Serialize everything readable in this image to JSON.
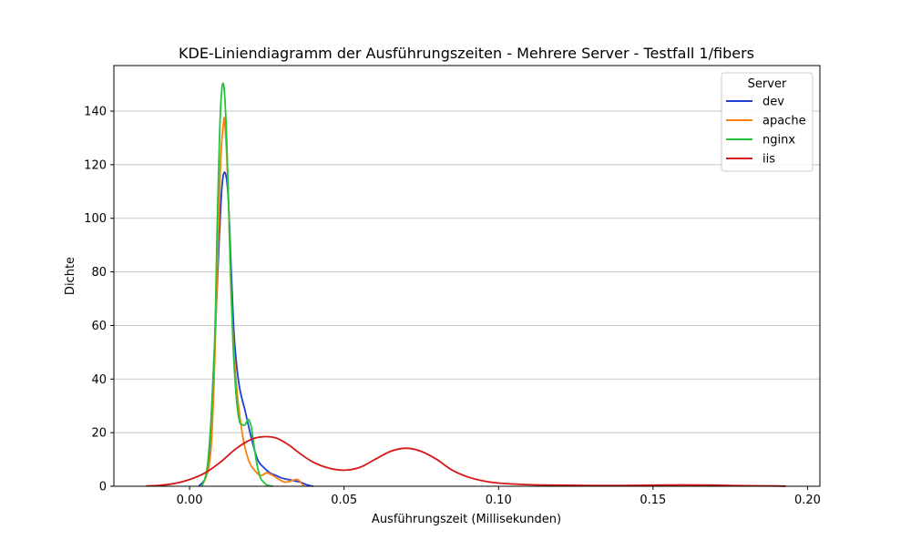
{
  "chart_data": {
    "type": "line",
    "title": "KDE-Liniendiagramm der Ausführungszeiten - Mehrere Server - Testfall 1/fibers",
    "xlabel": "Ausführungszeit (Millisekunden)",
    "ylabel": "Dichte",
    "xlim": [
      -0.0245,
      0.204
    ],
    "ylim": [
      0,
      157
    ],
    "x_ticks": [
      0.0,
      0.05,
      0.1,
      0.15,
      0.2
    ],
    "x_tick_labels": [
      "0.00",
      "0.05",
      "0.10",
      "0.15",
      "0.20"
    ],
    "y_ticks": [
      0,
      20,
      40,
      60,
      80,
      100,
      120,
      140
    ],
    "y_tick_labels": [
      "0",
      "20",
      "40",
      "60",
      "80",
      "100",
      "120",
      "140"
    ],
    "grid": "horizontal",
    "legend": {
      "title": "Server",
      "placement": "top-right"
    },
    "series": [
      {
        "name": "dev",
        "color": "#1f3fd6",
        "x": [
          0.003,
          0.006,
          0.008,
          0.0095,
          0.0105,
          0.0115,
          0.0125,
          0.0135,
          0.0145,
          0.016,
          0.018,
          0.02,
          0.022,
          0.024,
          0.026,
          0.028,
          0.03,
          0.032,
          0.034,
          0.036,
          0.038,
          0.04
        ],
        "y": [
          0,
          8,
          50,
          90,
          112,
          117,
          108,
          80,
          55,
          38,
          28,
          18,
          10,
          7,
          5,
          4,
          3,
          2.5,
          2,
          1.5,
          0.5,
          0
        ]
      },
      {
        "name": "apache",
        "color": "#ff7f0e",
        "x": [
          0.004,
          0.007,
          0.009,
          0.01,
          0.011,
          0.0115,
          0.0125,
          0.0135,
          0.015,
          0.017,
          0.019,
          0.021,
          0.023,
          0.025,
          0.027,
          0.029,
          0.031,
          0.033,
          0.035,
          0.037
        ],
        "y": [
          0,
          15,
          80,
          120,
          136,
          134,
          110,
          70,
          40,
          20,
          10,
          6,
          4,
          5,
          4,
          2.5,
          1.5,
          2,
          2.5,
          0
        ]
      },
      {
        "name": "nginx",
        "color": "#22c43a",
        "x": [
          0.004,
          0.006,
          0.008,
          0.009,
          0.01,
          0.011,
          0.012,
          0.013,
          0.014,
          0.015,
          0.016,
          0.017,
          0.018,
          0.019,
          0.02,
          0.021,
          0.022,
          0.023,
          0.024,
          0.025,
          0.027
        ],
        "y": [
          0,
          10,
          50,
          100,
          140,
          150,
          130,
          90,
          55,
          35,
          25,
          23,
          23,
          25,
          22,
          14,
          7,
          3,
          1.5,
          0.5,
          0
        ]
      },
      {
        "name": "iis",
        "color": "#d61818",
        "x": [
          -0.014,
          -0.01,
          -0.005,
          0.0,
          0.005,
          0.01,
          0.015,
          0.02,
          0.024,
          0.028,
          0.032,
          0.036,
          0.04,
          0.045,
          0.05,
          0.055,
          0.06,
          0.065,
          0.07,
          0.075,
          0.08,
          0.085,
          0.09,
          0.095,
          0.1,
          0.11,
          0.12,
          0.13,
          0.14,
          0.15,
          0.16,
          0.17,
          0.18,
          0.19,
          0.193
        ],
        "y": [
          0.1,
          0.3,
          1,
          2.5,
          5,
          9,
          14,
          17.5,
          18.5,
          18,
          15.5,
          12,
          9,
          6.8,
          6,
          7,
          10,
          13,
          14.2,
          13,
          10,
          6,
          3.5,
          2,
          1.2,
          0.6,
          0.4,
          0.3,
          0.3,
          0.4,
          0.5,
          0.4,
          0.2,
          0.1,
          0
        ]
      }
    ]
  }
}
